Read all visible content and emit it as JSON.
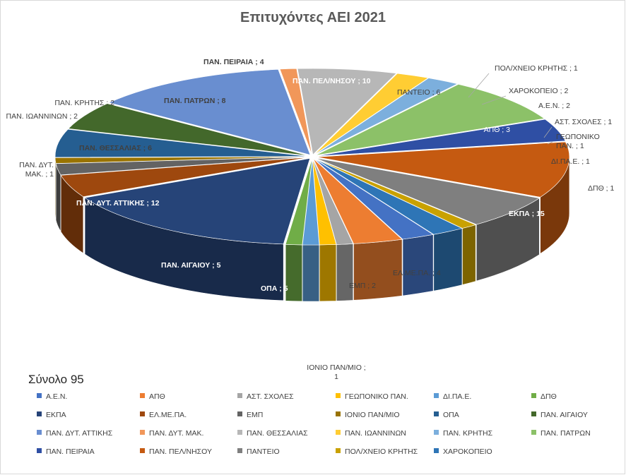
{
  "chart_data": {
    "type": "pie",
    "style": "3d-exploded",
    "title": "Επιτυχόντες ΑΕΙ 2021",
    "subtitle": "Σύνολο 95",
    "legend_position": "bottom",
    "slices": [
      {
        "label": "Α.Ε.Ν.",
        "value": 2,
        "color": "#4472c4"
      },
      {
        "label": "ΑΠΘ",
        "value": 3,
        "color": "#ed7d31"
      },
      {
        "label": "ΑΣΤ. ΣΧΟΛΕΣ",
        "value": 1,
        "color": "#a5a5a5"
      },
      {
        "label": "ΓΕΩΠΟΝΙΚΟ ΠΑΝ.",
        "value": 1,
        "color": "#ffc000"
      },
      {
        "label": "ΔΙ.ΠΑ.Ε.",
        "value": 1,
        "color": "#5b9bd5"
      },
      {
        "label": "ΔΠΘ",
        "value": 1,
        "color": "#70ad47"
      },
      {
        "label": "ΕΚΠΑ",
        "value": 15,
        "color": "#264478"
      },
      {
        "label": "ΕΛ.ΜΕ.ΠΑ.",
        "value": 4,
        "color": "#9e480e"
      },
      {
        "label": "ΕΜΠ",
        "value": 2,
        "color": "#636363"
      },
      {
        "label": "ΙΟΝΙΟ ΠΑΝ/ΜΙΟ",
        "value": 1,
        "color": "#997300"
      },
      {
        "label": "ΟΠΑ",
        "value": 5,
        "color": "#255e91"
      },
      {
        "label": "ΠΑΝ. ΑΙΓΑΙΟΥ",
        "value": 5,
        "color": "#43682b"
      },
      {
        "label": "ΠΑΝ. ΔΥΤ. ΑΤΤΙΚΗΣ",
        "value": 12,
        "color": "#698ed0"
      },
      {
        "label": "ΠΑΝ. ΔΥΤ. ΜΑΚ.",
        "value": 1,
        "color": "#f1975a"
      },
      {
        "label": "ΠΑΝ. ΘΕΣΣΑΛΙΑΣ",
        "value": 6,
        "color": "#b7b7b7"
      },
      {
        "label": "ΠΑΝ. ΙΩΑΝΝΙΝΩΝ",
        "value": 2,
        "color": "#ffcd33"
      },
      {
        "label": "ΠΑΝ. ΚΡΗΤΗΣ",
        "value": 2,
        "color": "#7cafdd"
      },
      {
        "label": "ΠΑΝ. ΠΑΤΡΩΝ",
        "value": 8,
        "color": "#8cc168"
      },
      {
        "label": "ΠΑΝ. ΠΕΙΡΑΙΑ",
        "value": 4,
        "color": "#2f4fa4"
      },
      {
        "label": "ΠΑΝ. ΠΕΛ/ΝΗΣΟΥ",
        "value": 10,
        "color": "#c55a11"
      },
      {
        "label": "ΠΑΝΤΕΙΟ",
        "value": 6,
        "color": "#7f7f7f"
      },
      {
        "label": "ΠΟΛ/ΧΝΕΙΟ ΚΡΗΤΗΣ",
        "value": 1,
        "color": "#c9a100"
      },
      {
        "label": "ΧΑΡΟΚΟΠΕΙΟ",
        "value": 2,
        "color": "#2e75b6"
      }
    ],
    "data_labels": [
      {
        "text": "Α.Ε.Ν. ; 2"
      },
      {
        "text": "ΑΠΘ ; 3"
      },
      {
        "text": "ΑΣΤ. ΣΧΟΛΕΣ ; 1"
      },
      {
        "text": "ΓΕΩΠΟΝΙΚΟ ΠΑΝ. ; 1",
        "lines": [
          "ΓΕΩΠΟΝΙΚΟ",
          "ΠΑΝ. ; 1"
        ]
      },
      {
        "text": "ΔΙ.ΠΑ.Ε. ; 1"
      },
      {
        "text": "ΔΠΘ ; 1"
      },
      {
        "text": "ΕΚΠΑ ; 15"
      },
      {
        "text": "ΕΛ.ΜΕ.ΠΑ. ; 4"
      },
      {
        "text": "ΕΜΠ ; 2"
      },
      {
        "text": "ΙΟΝΙΟ ΠΑΝ/ΜΙΟ ; 1",
        "lines": [
          "ΙΟΝΙΟ ΠΑΝ/ΜΙΟ ;",
          "1"
        ]
      },
      {
        "text": "ΟΠΑ ; 5"
      },
      {
        "text": "ΠΑΝ. ΑΙΓΑΙΟΥ ; 5"
      },
      {
        "text": "ΠΑΝ. ΔΥΤ. ΑΤΤΙΚΗΣ ; 12"
      },
      {
        "text": "ΠΑΝ. ΔΥΤ. ΜΑΚ. ; 1",
        "lines": [
          "ΠΑΝ. ΔΥΤ.",
          "ΜΑΚ. ; 1"
        ]
      },
      {
        "text": "ΠΑΝ. ΘΕΣΣΑΛΙΑΣ ; 6"
      },
      {
        "text": "ΠΑΝ. ΙΩΑΝΝΙΝΩΝ ; 2"
      },
      {
        "text": "ΠΑΝ. ΚΡΗΤΗΣ ; 2"
      },
      {
        "text": "ΠΑΝ. ΠΑΤΡΩΝ ; 8"
      },
      {
        "text": "ΠΑΝ. ΠΕΙΡΑΙΑ ; 4"
      },
      {
        "text": "ΠΑΝ. ΠΕΛ/ΝΗΣΟΥ ; 10"
      },
      {
        "text": "ΠΑΝΤΕΙΟ ; 6"
      },
      {
        "text": "ΠΟΛ/ΧΝΕΙΟ ΚΡΗΤΗΣ ; 1"
      },
      {
        "text": "ΧΑΡΟΚΟΠΕΙΟ ; 2"
      }
    ]
  }
}
